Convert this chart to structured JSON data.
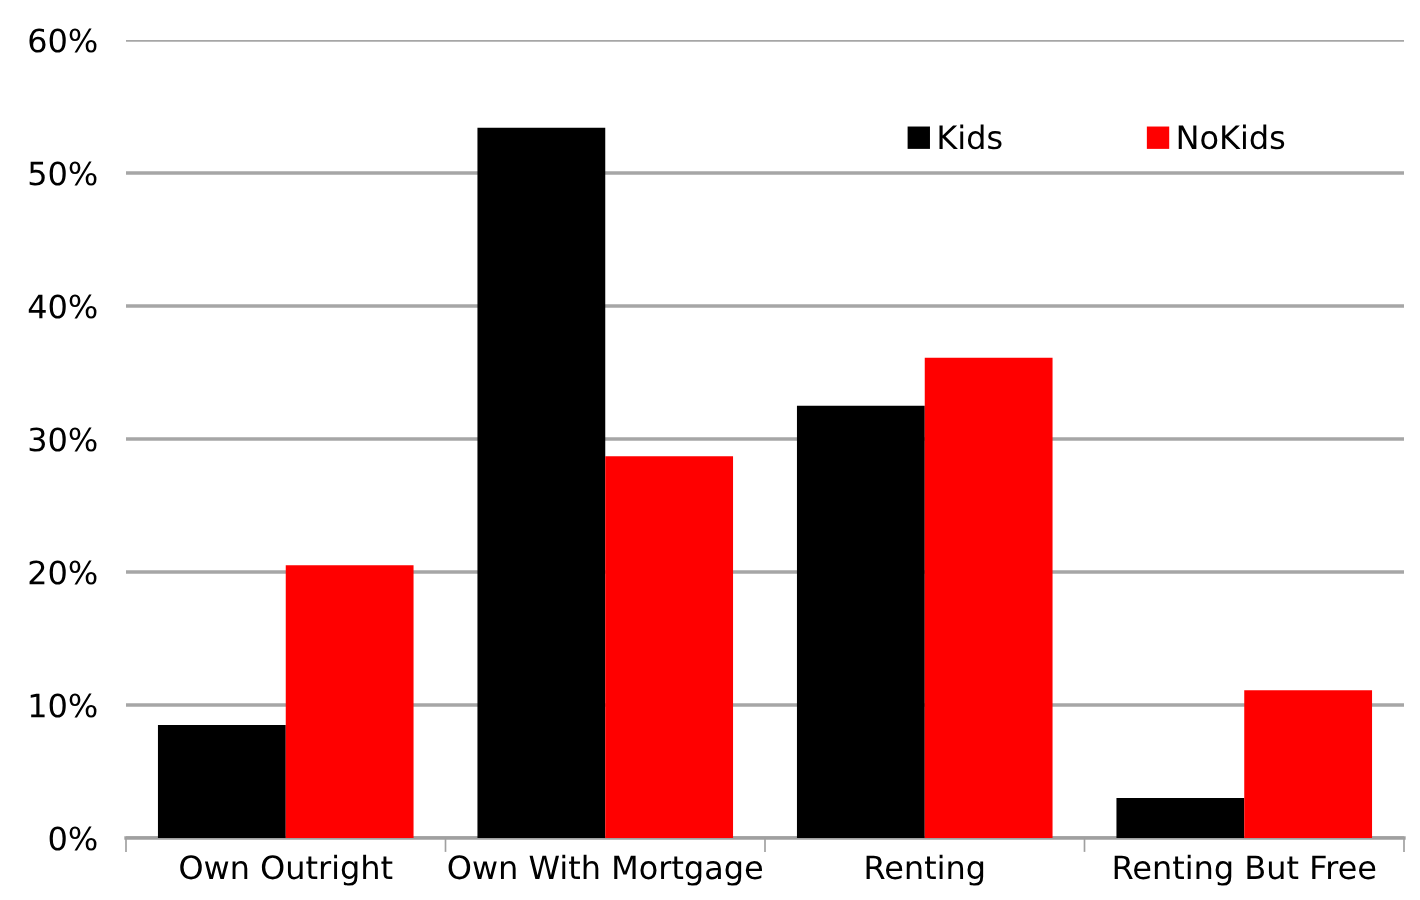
{
  "chart_data": {
    "type": "bar",
    "categories": [
      "Own Outright",
      "Own With Mortgage",
      "Renting",
      "Renting But Free"
    ],
    "series": [
      {
        "name": "Kids",
        "color": "#000000",
        "values": [
          8.5,
          53.4,
          32.5,
          3.0
        ]
      },
      {
        "name": "NoKids",
        "color": "#ff0000",
        "values": [
          20.5,
          28.7,
          36.1,
          11.1
        ]
      }
    ],
    "ylim": [
      0,
      60
    ],
    "yticks": [
      {
        "value": 0,
        "label": "0%"
      },
      {
        "value": 10,
        "label": "10%"
      },
      {
        "value": 20,
        "label": "20%"
      },
      {
        "value": 30,
        "label": "30%"
      },
      {
        "value": 40,
        "label": "40%"
      },
      {
        "value": 50,
        "label": "50%"
      },
      {
        "value": 60,
        "label": "60%"
      }
    ],
    "grid": "y",
    "legend": "top right"
  }
}
